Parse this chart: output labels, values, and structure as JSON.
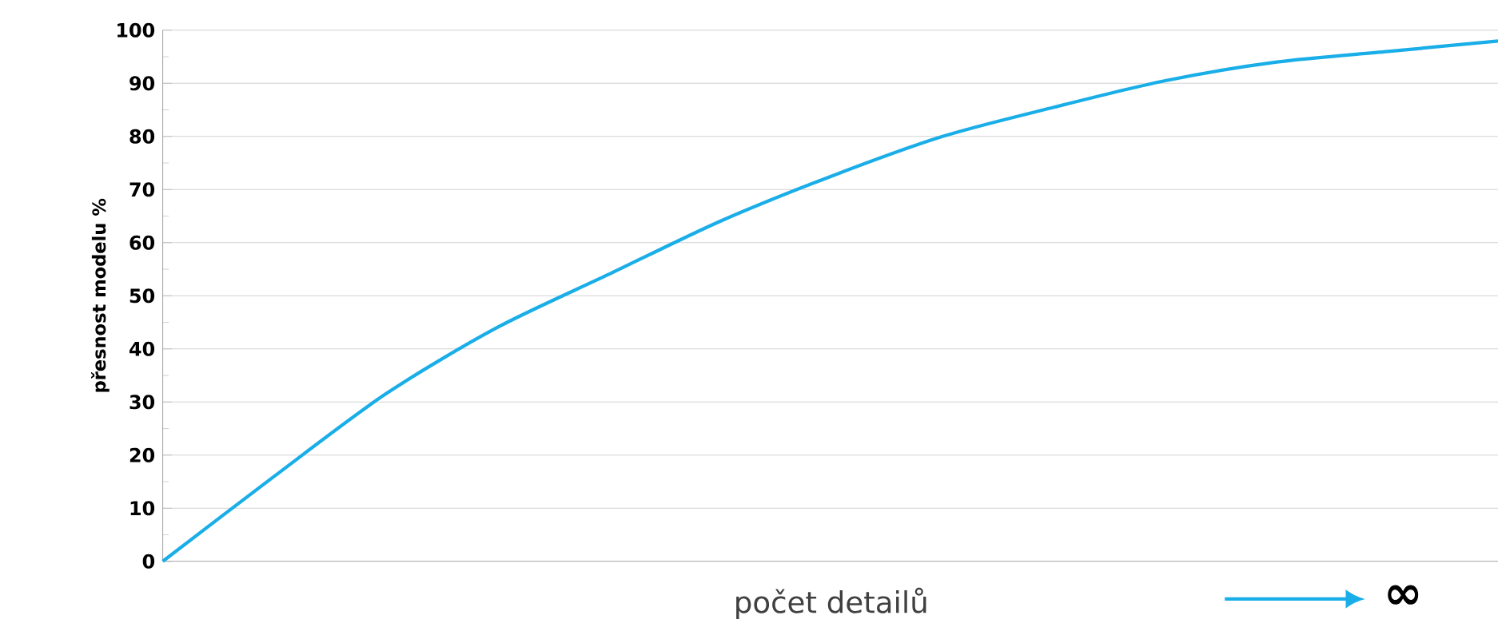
{
  "chart_data": {
    "type": "line",
    "ylabel": "přesnost modelu   %",
    "xlabel": "počet detailů",
    "categories": [
      null,
      null,
      null,
      null,
      null,
      null,
      null,
      null,
      null,
      null,
      null,
      null,
      null
    ],
    "series": [
      {
        "color": "#1aaee8",
        "values": [
          0,
          16,
          31.5,
          44,
          54,
          64,
          72.5,
          80,
          85.5,
          90.5,
          94,
          96,
          98
        ]
      }
    ],
    "ylim": [
      0,
      100
    ],
    "yticks": [
      0,
      10,
      20,
      30,
      40,
      50,
      60,
      70,
      80,
      90,
      100
    ],
    "grid": "y",
    "marker": "none",
    "line_style": "solid",
    "tick_labels": "y",
    "annotations": [
      "∞"
    ]
  }
}
